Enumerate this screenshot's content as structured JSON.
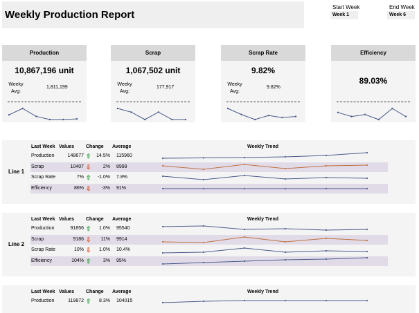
{
  "title": "Weekly Production Report",
  "start_week": {
    "label": "Start Week",
    "value": "Week 1"
  },
  "end_week": {
    "label": "End Week",
    "value": "Week 6"
  },
  "colors": {
    "line": "#4a5a8a",
    "scrap_line": "#c07040",
    "band": "#e1dbe8",
    "up": "#2e9e3f",
    "down": "#d9572b"
  },
  "cards": [
    {
      "header": "Production",
      "value": "10,867,196 unit",
      "avg_label": "Weeky Avg:",
      "avg_value": "1,811,199",
      "spark": [
        2,
        4,
        1.5,
        0.5,
        0.5,
        0.7
      ]
    },
    {
      "header": "Scrap",
      "value": "1,067,502 unit",
      "avg_label": "Weeky Avg:",
      "avg_value": "177,917",
      "spark": [
        4,
        3,
        1,
        3,
        1,
        1
      ]
    },
    {
      "header": "Scrap Rate",
      "value": "9.82%",
      "avg_label": "Weeky Avg:",
      "avg_value": "9.82%",
      "spark": [
        6,
        3,
        0.5,
        2.5,
        1.5,
        2
      ]
    },
    {
      "header": "Efficiency",
      "value": "89.03%",
      "avg_label": "",
      "avg_value": "",
      "spark": [
        4,
        2,
        3,
        0.5,
        6,
        2
      ]
    }
  ],
  "table_headers": {
    "last_week": "Last Week",
    "values": "Values",
    "change": "Change",
    "average": "Average",
    "trend": "Weekly Trend"
  },
  "lines": [
    {
      "label": "Line 1",
      "rows": [
        {
          "name": "Production",
          "value": "148677",
          "dir": "up",
          "arrow": "⇧",
          "change": "14.5%",
          "average": "115960",
          "trend": [
            0.2,
            0.25,
            0.3,
            0.4,
            0.6,
            1.0
          ]
        },
        {
          "name": "Scrap",
          "value": "10407",
          "dir": "down",
          "arrow": "⇩",
          "change": "2%",
          "average": "8999",
          "trend": [
            0.7,
            0.2,
            0.9,
            0.3,
            0.7,
            0.8
          ]
        },
        {
          "name": "Scrap Rate",
          "value": "7%",
          "dir": "up",
          "arrow": "⇧",
          "change": "-1.0%",
          "average": "7.8%",
          "trend": [
            0.7,
            0.2,
            0.8,
            0.3,
            0.5,
            0.4
          ]
        },
        {
          "name": "Efficiency",
          "value": "86%",
          "dir": "down",
          "arrow": "⇩",
          "change": "-3%",
          "average": "91%",
          "trend": [
            0.5,
            0.5,
            0.5,
            0.5,
            0.5,
            0.5
          ]
        }
      ]
    },
    {
      "label": "Line 2",
      "rows": [
        {
          "name": "Production",
          "value": "91856",
          "dir": "up",
          "arrow": "⇧",
          "change": "1.0%",
          "average": "95540",
          "trend": [
            0.8,
            0.9,
            0.4,
            0.5,
            0.3,
            0.4
          ]
        },
        {
          "name": "Scrap",
          "value": "9186",
          "dir": "down",
          "arrow": "⇩",
          "change": "11%",
          "average": "9914",
          "trend": [
            0.2,
            0.1,
            0.9,
            0.2,
            0.7,
            0.4
          ]
        },
        {
          "name": "Scrap Rate",
          "value": "10%",
          "dir": "down",
          "arrow": "⇩",
          "change": "1.0%",
          "average": "10.4%",
          "trend": [
            0.1,
            0.2,
            0.8,
            0.2,
            0.4,
            0.3
          ]
        },
        {
          "name": "Efficiency",
          "value": "104%",
          "dir": "up",
          "arrow": "⇧",
          "change": "3%",
          "average": "95%",
          "trend": [
            0.1,
            0.3,
            0.5,
            0.7,
            0.8,
            1.0
          ]
        }
      ]
    },
    {
      "label": "",
      "rows": [
        {
          "name": "Production",
          "value": "119872",
          "dir": "up",
          "arrow": "⇧",
          "change": "8.3%",
          "average": "104015",
          "trend": [
            0.3,
            0.5,
            0.6,
            0.6,
            0.6,
            0.6
          ]
        }
      ]
    }
  ]
}
